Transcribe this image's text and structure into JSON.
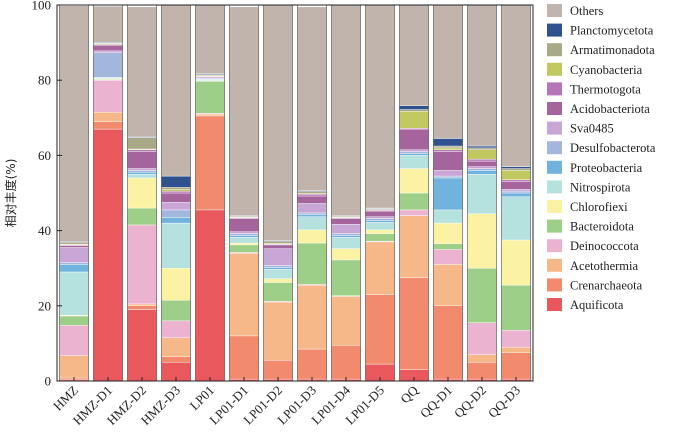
{
  "chart_data": {
    "type": "bar",
    "stacked": true,
    "title": "",
    "xlabel": "",
    "ylabel": "相对丰度(%)",
    "ylim": [
      0,
      100
    ],
    "yticks": [
      0,
      20,
      40,
      60,
      80,
      100
    ],
    "legend_position": "right",
    "categories": [
      "HMZ",
      "HMZ-D1",
      "HMZ-D2",
      "HMZ-D3",
      "LP01",
      "LP01-D1",
      "LP01-D2",
      "LP01-D3",
      "LP01-D4",
      "LP01-D5",
      "QQ",
      "QQ-D1",
      "QQ-D2",
      "QQ-D3"
    ],
    "series": [
      {
        "name": "Aquificota",
        "color": "#e8585c",
        "values": [
          0.3,
          67,
          19,
          5,
          45.5,
          0.5,
          0.5,
          0.5,
          0.5,
          4.5,
          3,
          0.5,
          0.5,
          0.5
        ]
      },
      {
        "name": "Crenarchaeota",
        "color": "#f28b6e",
        "values": [
          0.5,
          2,
          1,
          1.5,
          25,
          11.5,
          5,
          8,
          9,
          18.5,
          24.5,
          19.5,
          4.5,
          7
        ]
      },
      {
        "name": "Acetothermia",
        "color": "#f7b889",
        "values": [
          6,
          2.5,
          0.5,
          5,
          0.5,
          22,
          15.5,
          17,
          13,
          14,
          16.5,
          11,
          2,
          1.5
        ]
      },
      {
        "name": "Deinococcota",
        "color": "#ecb3d0",
        "values": [
          8,
          8.5,
          21,
          4.5,
          0.2,
          0.2,
          0.2,
          0.2,
          0.2,
          0.2,
          1.5,
          4,
          8.5,
          4.5
        ]
      },
      {
        "name": "Bacteroidota",
        "color": "#9dcf88",
        "values": [
          2.5,
          0.2,
          4.5,
          5.5,
          8.5,
          2,
          5,
          11,
          9.5,
          2,
          4.5,
          1.5,
          14.5,
          12
        ]
      },
      {
        "name": "Chlorofiexi",
        "color": "#fbf3a3",
        "values": [
          0.2,
          0.2,
          8,
          8.5,
          0.2,
          0.5,
          1,
          3.5,
          3,
          1,
          6.5,
          5.5,
          14.5,
          12
        ]
      },
      {
        "name": "Nitrospirota",
        "color": "#b5e2df",
        "values": [
          11.5,
          0.2,
          1,
          12,
          0.2,
          1.5,
          2.5,
          3.5,
          3,
          2,
          3.5,
          3.5,
          10.5,
          11.5
        ]
      },
      {
        "name": "Proteobacteria",
        "color": "#6fb3de",
        "values": [
          2,
          0.2,
          0.5,
          1.5,
          0.2,
          0.5,
          0.5,
          0.5,
          0.5,
          0.5,
          0.5,
          8.5,
          1,
          1
        ]
      },
      {
        "name": "Desulfobacterota",
        "color": "#a3b7dc",
        "values": [
          0.5,
          6.5,
          0.5,
          2,
          0.2,
          0.5,
          0.5,
          0.5,
          0.5,
          0.5,
          0.5,
          0.5,
          0.5,
          0.5
        ]
      },
      {
        "name": "Sva0485",
        "color": "#c8a7d6",
        "values": [
          4,
          0.5,
          0.5,
          2,
          0.2,
          0.5,
          4.5,
          2.5,
          2.5,
          0.5,
          0.5,
          1.5,
          0.5,
          0.5
        ]
      },
      {
        "name": "Acidobacteriota",
        "color": "#a6649d",
        "values": [
          0.5,
          1.5,
          4.5,
          2.5,
          0.2,
          3.5,
          1,
          2,
          1.5,
          1.5,
          5.5,
          5,
          1.5,
          2
        ]
      },
      {
        "name": "Thermotogota",
        "color": "#b676b8",
        "values": [
          0.2,
          0.2,
          0.5,
          0.5,
          0.2,
          0.2,
          0.2,
          0.5,
          0.2,
          0.2,
          0.2,
          0.5,
          0.5,
          0.5
        ]
      },
      {
        "name": "Cyanobacteria",
        "color": "#c2c860",
        "values": [
          0.2,
          0.2,
          0.2,
          0.5,
          0.2,
          0.2,
          0.2,
          0.2,
          0.2,
          0.2,
          4.5,
          0.5,
          2.5,
          2.5
        ]
      },
      {
        "name": "Armatimonadota",
        "color": "#a9a887",
        "values": [
          0.5,
          0.2,
          3,
          0.5,
          0.2,
          0.2,
          0.5,
          0.5,
          0.2,
          0.2,
          0.5,
          0.5,
          0.5,
          0.5
        ]
      },
      {
        "name": "Planctomycetota",
        "color": "#2f528f",
        "values": [
          0.2,
          0.2,
          0.2,
          3,
          0.2,
          0.2,
          0.2,
          0.2,
          0.2,
          0.2,
          1,
          2,
          0.5,
          0.5
        ]
      },
      {
        "name": "Others",
        "color": "#c0b4ad",
        "values": [
          62.7,
          9.6,
          34.6,
          45.5,
          18.6,
          55.5,
          62.7,
          48.9,
          56.0,
          54.1,
          26.8,
          36.0,
          38.0,
          44.0
        ]
      }
    ]
  }
}
